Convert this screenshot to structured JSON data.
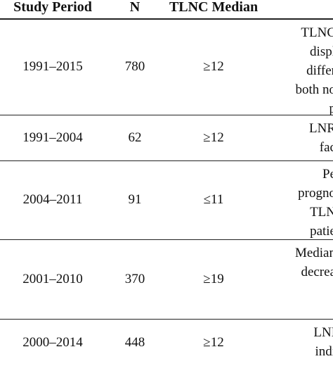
{
  "table": {
    "headers": [
      "Study Period",
      "N",
      "TLNC Median"
    ],
    "rows": [
      {
        "period": "1991–2015",
        "n": "780",
        "median": "≥12",
        "outcome_lines": [
          "TLNC",
          "displ",
          "differ",
          "both no",
          "p"
        ]
      },
      {
        "period": "1991–2004",
        "n": "62",
        "median": "≥12",
        "outcome_lines": [
          "LNR",
          "fac"
        ]
      },
      {
        "period": "2004–2011",
        "n": "91",
        "median": "≤11",
        "outcome_lines": [
          "Pe",
          "progno",
          "TLN",
          "patie"
        ]
      },
      {
        "period": "2001–2010",
        "n": "370",
        "median": "≥19",
        "outcome_lines": [
          "Median",
          "decrea"
        ]
      },
      {
        "period": "2000–2014",
        "n": "448",
        "median": "≥12",
        "outcome_lines": [
          "LNI",
          "indi"
        ]
      }
    ]
  }
}
